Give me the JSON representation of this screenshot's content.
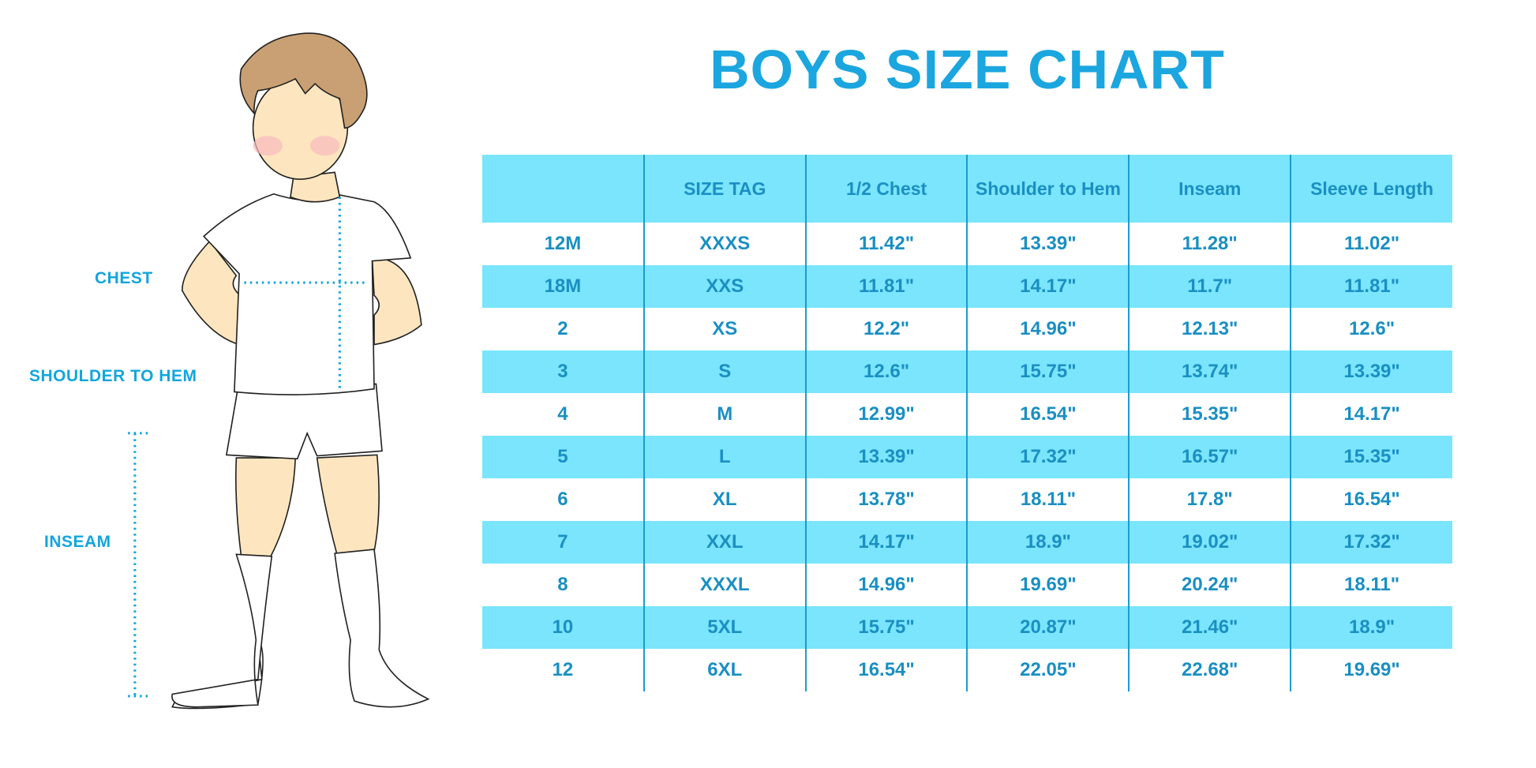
{
  "title": "BOYS SIZE CHART",
  "figure_labels": {
    "chest": "CHEST",
    "shoulder_to_hem": "SHOULDER TO HEM",
    "inseam": "INSEAM"
  },
  "colors": {
    "accent": "#1ba6df",
    "row_highlight": "#7ae5fd",
    "table_text": "#1a8fc2"
  },
  "table": {
    "headers": [
      "",
      "SIZE TAG",
      "1/2 Chest",
      "Shoulder to Hem",
      "Inseam",
      "Sleeve Length"
    ],
    "rows": [
      [
        "12M",
        "XXXS",
        "11.42\"",
        "13.39\"",
        "11.28\"",
        "11.02\""
      ],
      [
        "18M",
        "XXS",
        "11.81\"",
        "14.17\"",
        "11.7\"",
        "11.81\""
      ],
      [
        "2",
        "XS",
        "12.2\"",
        "14.96\"",
        "12.13\"",
        "12.6\""
      ],
      [
        "3",
        "S",
        "12.6\"",
        "15.75\"",
        "13.74\"",
        "13.39\""
      ],
      [
        "4",
        "M",
        "12.99\"",
        "16.54\"",
        "15.35\"",
        "14.17\""
      ],
      [
        "5",
        "L",
        "13.39\"",
        "17.32\"",
        "16.57\"",
        "15.35\""
      ],
      [
        "6",
        "XL",
        "13.78\"",
        "18.11\"",
        "17.8\"",
        "16.54\""
      ],
      [
        "7",
        "XXL",
        "14.17\"",
        "18.9\"",
        "19.02\"",
        "17.32\""
      ],
      [
        "8",
        "XXXL",
        "14.96\"",
        "19.69\"",
        "20.24\"",
        "18.11\""
      ],
      [
        "10",
        "5XL",
        "15.75\"",
        "20.87\"",
        "21.46\"",
        "18.9\""
      ],
      [
        "12",
        "6XL",
        "16.54\"",
        "22.05\"",
        "22.68\"",
        "19.69\""
      ]
    ]
  }
}
